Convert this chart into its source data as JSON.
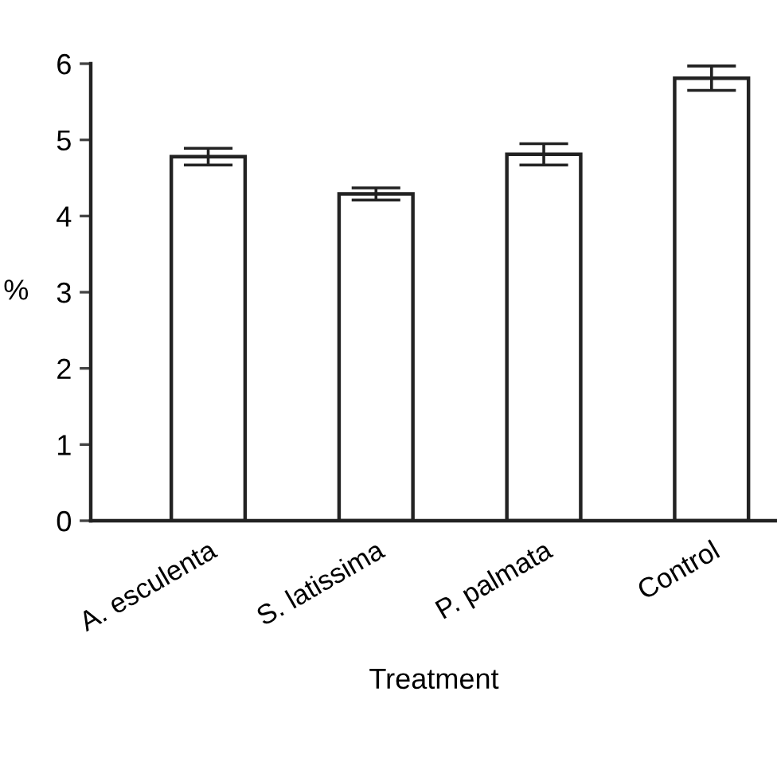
{
  "chart_data": {
    "type": "bar",
    "xlabel": "Treatment",
    "ylabel": "%",
    "categories": [
      "A. esculenta",
      "S. latissima",
      "P. palmata",
      "Control"
    ],
    "values": [
      4.78,
      4.29,
      4.81,
      5.81
    ],
    "errors": [
      0.11,
      0.08,
      0.14,
      0.16
    ],
    "color": "#ffffff",
    "ylim": [
      0,
      6
    ],
    "yticks": [
      0,
      1,
      2,
      3,
      4,
      5,
      6
    ],
    "grid": false,
    "legend": false
  }
}
